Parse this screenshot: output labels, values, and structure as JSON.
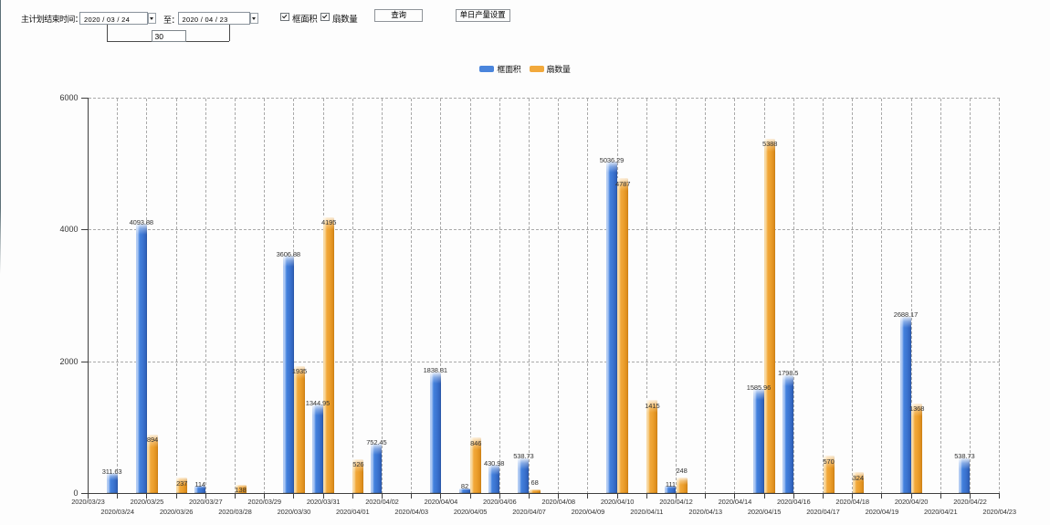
{
  "window": {
    "title": ""
  },
  "toolbar": {
    "range_label": "主计划结束时间：",
    "date_from": "2020 / 03 / 24",
    "to_label": "至：",
    "date_to": "2020 / 04 / 23",
    "days_between": "30",
    "checkbox_frame_area_label": "框面积",
    "checkbox_frame_area_checked": true,
    "checkbox_sash_count_label": "扇数量",
    "checkbox_sash_count_checked": true,
    "query_button_label": "查询",
    "daily_output_button_label": "单日产量设置"
  },
  "legend": {
    "items": [
      {
        "label": "框面积",
        "color": "#4a85dc"
      },
      {
        "label": "扇数量",
        "color": "#f2a93c"
      }
    ]
  },
  "chart_data": {
    "type": "bar",
    "title": "",
    "xlabel": "",
    "ylabel": "",
    "categories": [
      "2020/03/23",
      "2020/03/24",
      "2020/03/25",
      "2020/03/26",
      "2020/03/27",
      "2020/03/28",
      "2020/03/29",
      "2020/03/30",
      "2020/03/31",
      "2020/04/01",
      "2020/04/02",
      "2020/04/03",
      "2020/04/04",
      "2020/04/05",
      "2020/04/06",
      "2020/04/07",
      "2020/04/08",
      "2020/04/09",
      "2020/04/10",
      "2020/04/11",
      "2020/04/12",
      "2020/04/13",
      "2020/04/14",
      "2020/04/15",
      "2020/04/16",
      "2020/04/17",
      "2020/04/18",
      "2020/04/19",
      "2020/04/20",
      "2020/04/21",
      "2020/04/22",
      "2020/04/23"
    ],
    "series": [
      {
        "name": "框面积",
        "color": "#3e7bd8",
        "values": [
          null,
          311.63,
          4093.88,
          null,
          114,
          null,
          null,
          3606.88,
          1344.95,
          null,
          752.45,
          null,
          1838.81,
          82,
          430.98,
          538.73,
          null,
          null,
          5036.29,
          null,
          111,
          null,
          null,
          1585.96,
          1798.5,
          null,
          null,
          null,
          2688.17,
          null,
          538.73,
          null
        ]
      },
      {
        "name": "扇数量",
        "color": "#f0a432",
        "values": [
          null,
          null,
          894,
          237,
          null,
          138,
          null,
          1935,
          4195,
          526,
          null,
          null,
          null,
          846,
          null,
          68,
          null,
          null,
          4787,
          1415,
          248,
          null,
          null,
          5388,
          null,
          570,
          324,
          null,
          1368,
          null,
          null,
          null
        ]
      }
    ],
    "ylim": [
      0,
      6000
    ],
    "yticks": [
      0,
      2000,
      4000,
      6000
    ],
    "grid": "dashed",
    "legend_position": "top",
    "value_labels": true,
    "sash_label_above_indices": [
      15,
      20
    ]
  }
}
